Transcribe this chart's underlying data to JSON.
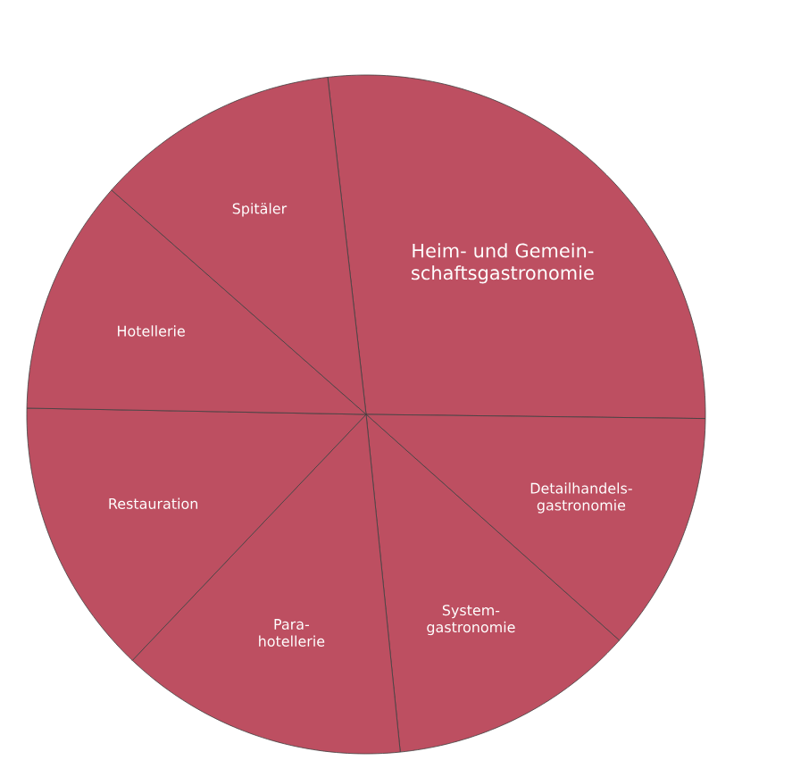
{
  "chart_data": {
    "type": "pie",
    "categories": [
      "Heim- und Gemein-\nschaftsgastronomie",
      "Detailhandels-\ngastronomie",
      "System-\ngastronomie",
      "Para-\nhotellerie",
      "Restauration",
      "Hotellerie",
      "Spitäler"
    ],
    "values": [
      27.0,
      11.4,
      11.8,
      13.7,
      13.2,
      11.2,
      11.7
    ],
    "colors": [
      "#bd4f61",
      "#bd4f61",
      "#bd4f61",
      "#bd4f61",
      "#bd4f61",
      "#bd4f61",
      "#bd4f61"
    ]
  }
}
